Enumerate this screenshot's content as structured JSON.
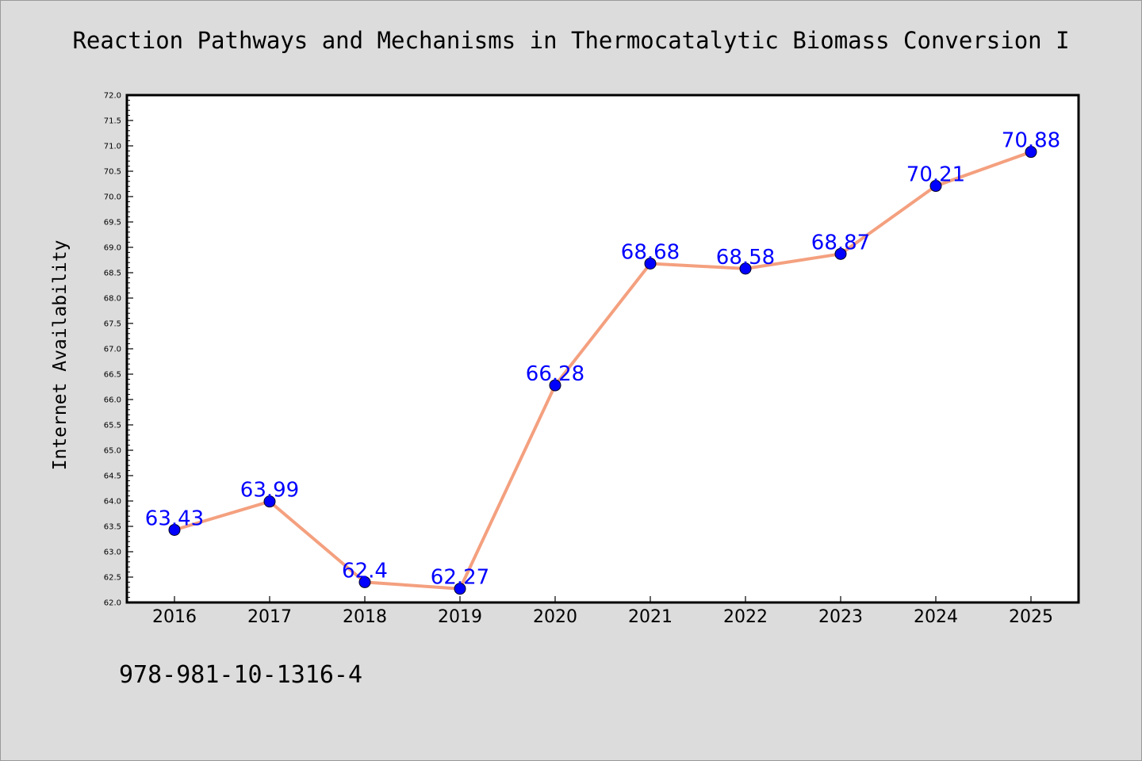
{
  "chart_data": {
    "type": "line",
    "title": "Reaction Pathways and Mechanisms in Thermocatalytic Biomass Conversion I",
    "ylabel": "Internet Availability",
    "xlabel": "",
    "categories": [
      "2016",
      "2017",
      "2018",
      "2019",
      "2020",
      "2021",
      "2022",
      "2023",
      "2024",
      "2025"
    ],
    "values": [
      63.43,
      63.99,
      62.4,
      62.27,
      66.28,
      68.68,
      68.58,
      68.87,
      70.21,
      70.88
    ],
    "data_labels": [
      "63.43",
      "63.99",
      "62.4",
      "62.27",
      "66.28",
      "68.68",
      "68.58",
      "68.87",
      "70.21",
      "70.88"
    ],
    "y_ticks": [
      "62.0",
      "62.5",
      "63.0",
      "63.5",
      "64.0",
      "64.5",
      "65.0",
      "65.5",
      "66.0",
      "66.5",
      "67.0",
      "67.5",
      "68.0",
      "68.5",
      "69.0",
      "69.5",
      "70.0",
      "70.5",
      "71.0",
      "71.5",
      "72.0"
    ],
    "ylim": [
      62.0,
      72.0
    ],
    "grid": false,
    "line_color": "#f4a07f",
    "marker_color": "#0000ff",
    "label_color": "#0000ff"
  },
  "footer": {
    "isbn": "978-981-10-1316-4"
  }
}
